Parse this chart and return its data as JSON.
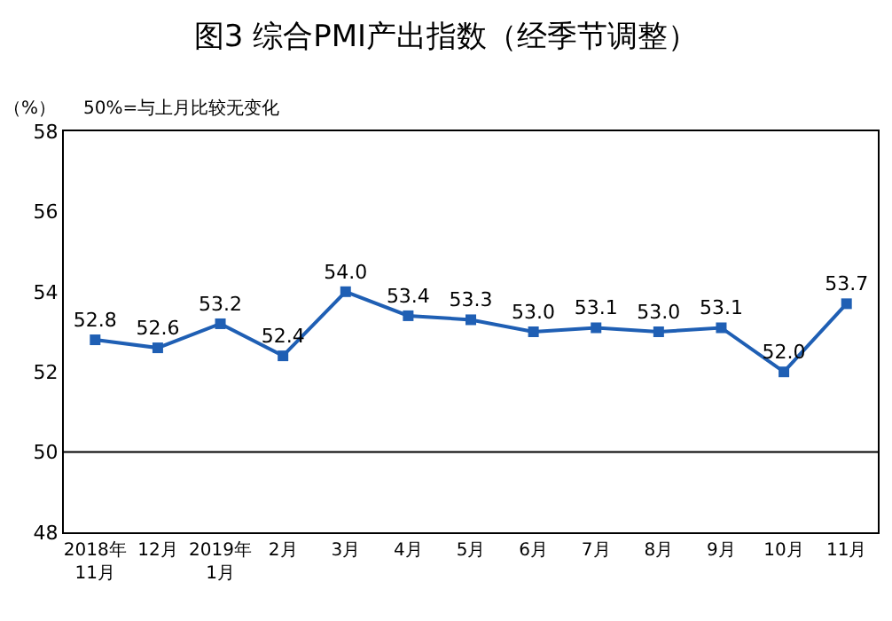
{
  "chart_data": {
    "type": "line",
    "title": "图3 综合PMI产出指数（经季节调整）",
    "ylabel": "（%）",
    "annotations": [
      "50%=与上月比较无变化"
    ],
    "categories": [
      "2018年\n11月",
      "12月",
      "2019年\n1月",
      "2月",
      "3月",
      "4月",
      "5月",
      "6月",
      "7月",
      "8月",
      "9月",
      "10月",
      "11月"
    ],
    "series": [
      {
        "color": "#1f5fb4",
        "values": [
          52.8,
          52.6,
          53.2,
          52.4,
          54.0,
          53.4,
          53.3,
          53.0,
          53.1,
          53.0,
          53.1,
          52.0,
          53.7
        ],
        "value_labels": [
          "52.8",
          "52.6",
          "53.2",
          "52.4",
          "54.0",
          "53.4",
          "53.3",
          "53.0",
          "53.1",
          "53.0",
          "53.1",
          "52.0",
          "53.7"
        ]
      }
    ],
    "ylim": [
      48,
      58
    ],
    "yticks": [
      48,
      50,
      52,
      54,
      56,
      58
    ],
    "ref_lines": [
      {
        "axis": "y",
        "value": 50,
        "color": "#000000",
        "line_style": "solid"
      }
    ],
    "marker": "square",
    "line_style": "solid",
    "legend": false
  }
}
